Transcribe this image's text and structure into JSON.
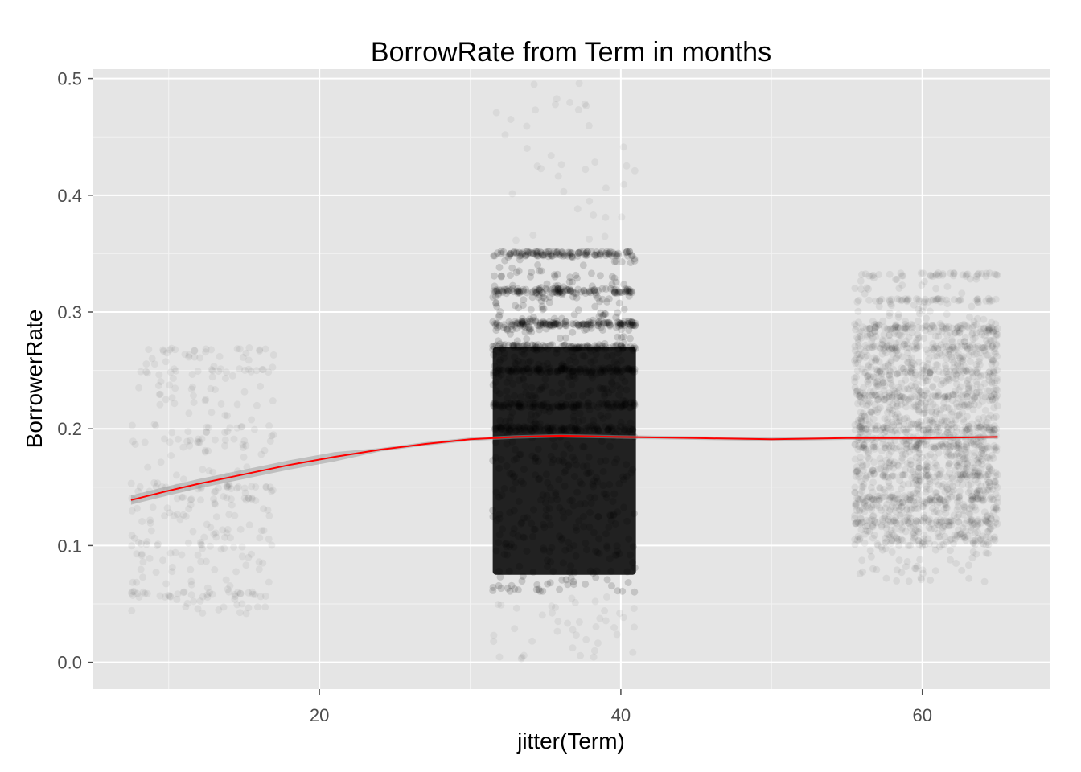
{
  "chart_data": {
    "type": "scatter",
    "title": "BorrowRate from Term in months",
    "xlabel": "jitter(Term)",
    "ylabel": "BorrowerRate",
    "xlim": [
      5,
      68.5
    ],
    "ylim": [
      -0.023,
      0.508
    ],
    "x_ticks": [
      20,
      40,
      60
    ],
    "x_tick_labels": [
      "20",
      "40",
      "60"
    ],
    "y_ticks": [
      0.0,
      0.1,
      0.2,
      0.3,
      0.4,
      0.5
    ],
    "y_tick_labels": [
      "0.0",
      "0.1",
      "0.2",
      "0.3",
      "0.4",
      "0.5"
    ],
    "grid": true,
    "panel_background": "#e5e5e5",
    "point_color": "#000000",
    "smooth_color": "#ff0000",
    "clusters": [
      {
        "term": 12,
        "x_range": [
          7.5,
          17.0
        ],
        "y_range": [
          0.04,
          0.27
        ],
        "density": "low",
        "band_rates": [
          0.057,
          0.06,
          0.1,
          0.125,
          0.14,
          0.15,
          0.19,
          0.25,
          0.267
        ]
      },
      {
        "term": 36,
        "x_range": [
          31.5,
          41.0
        ],
        "y_range": [
          0.0,
          0.5
        ],
        "core_range": [
          0.06,
          0.35
        ],
        "density": "high",
        "band_rates": [
          0.35,
          0.318,
          0.29,
          0.27,
          0.25,
          0.22,
          0.2
        ]
      },
      {
        "term": 60,
        "x_range": [
          55.5,
          65.0
        ],
        "y_range": [
          0.068,
          0.332
        ],
        "density": "medium",
        "band_rates": [
          0.332,
          0.31,
          0.287,
          0.27,
          0.249,
          0.228,
          0.2,
          0.185,
          0.16,
          0.14,
          0.12
        ]
      }
    ],
    "smooth_line": {
      "x": [
        7.5,
        10,
        12,
        15,
        18,
        21,
        24,
        27,
        30,
        33,
        36,
        40,
        45,
        50,
        55,
        60,
        65
      ],
      "y": [
        0.139,
        0.147,
        0.153,
        0.161,
        0.169,
        0.176,
        0.182,
        0.187,
        0.191,
        0.193,
        0.194,
        0.193,
        0.192,
        0.191,
        0.192,
        0.192,
        0.193
      ]
    }
  }
}
